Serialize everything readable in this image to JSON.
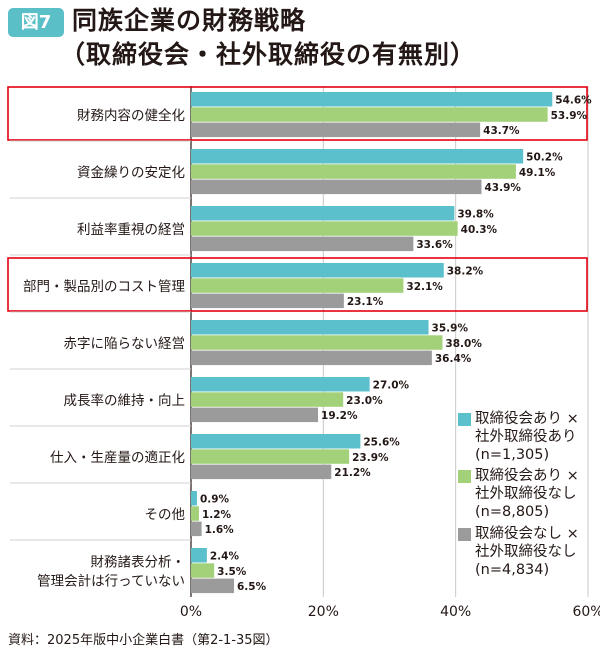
{
  "figure_label": "図7",
  "title": "同族企業の財務戦略",
  "subtitle": "（取締役会・社外取締役の有無別）",
  "source": "資料：2025年版中小企業白書（第2-1-35図）",
  "colors": {
    "series_1": "#5bbfcc",
    "series_2": "#a3d17a",
    "series_3": "#9b9b9b",
    "highlight_box": "#e60012",
    "badge": "#5bbfc8"
  },
  "chart_data": {
    "type": "bar",
    "orientation": "horizontal",
    "categories": [
      [
        "財務内容の健全化"
      ],
      [
        "資金繰りの安定化"
      ],
      [
        "利益率重視の経営"
      ],
      [
        "部門・製品別のコスト管理"
      ],
      [
        "赤字に陥らない経営"
      ],
      [
        "成長率の維持・向上"
      ],
      [
        "仕入・生産量の適正化"
      ],
      [
        "その他"
      ],
      [
        "財務諸表分析・",
        "管理会計は行っていない"
      ]
    ],
    "highlighted_categories": [
      0,
      3
    ],
    "series": [
      {
        "name": "取締役会あり × 社外取締役あり (n=1,305)",
        "legend_lines": [
          "取締役会あり ×",
          "社外取締役あり",
          "(n=1,305)"
        ],
        "values": [
          54.6,
          50.2,
          39.8,
          38.2,
          35.9,
          27.0,
          25.6,
          0.9,
          2.4
        ]
      },
      {
        "name": "取締役会あり × 社外取締役なし (n=8,805)",
        "legend_lines": [
          "取締役会あり ×",
          "社外取締役なし",
          "(n=8,805)"
        ],
        "values": [
          53.9,
          49.1,
          40.3,
          32.1,
          38.0,
          23.0,
          23.9,
          1.2,
          3.5
        ]
      },
      {
        "name": "取締役会なし × 社外取締役なし (n=4,834)",
        "legend_lines": [
          "取締役会なし ×",
          "社外取締役なし",
          "(n=4,834)"
        ],
        "values": [
          43.7,
          43.9,
          33.6,
          23.1,
          36.4,
          19.2,
          21.2,
          1.6,
          6.5
        ]
      }
    ],
    "value_suffix": "%",
    "xlim": [
      0,
      60
    ],
    "xticks": [
      0,
      20,
      40,
      60
    ],
    "xtick_labels": [
      "0%",
      "20%",
      "40%",
      "60%"
    ],
    "grid": "vertical",
    "legend_position": "right"
  }
}
